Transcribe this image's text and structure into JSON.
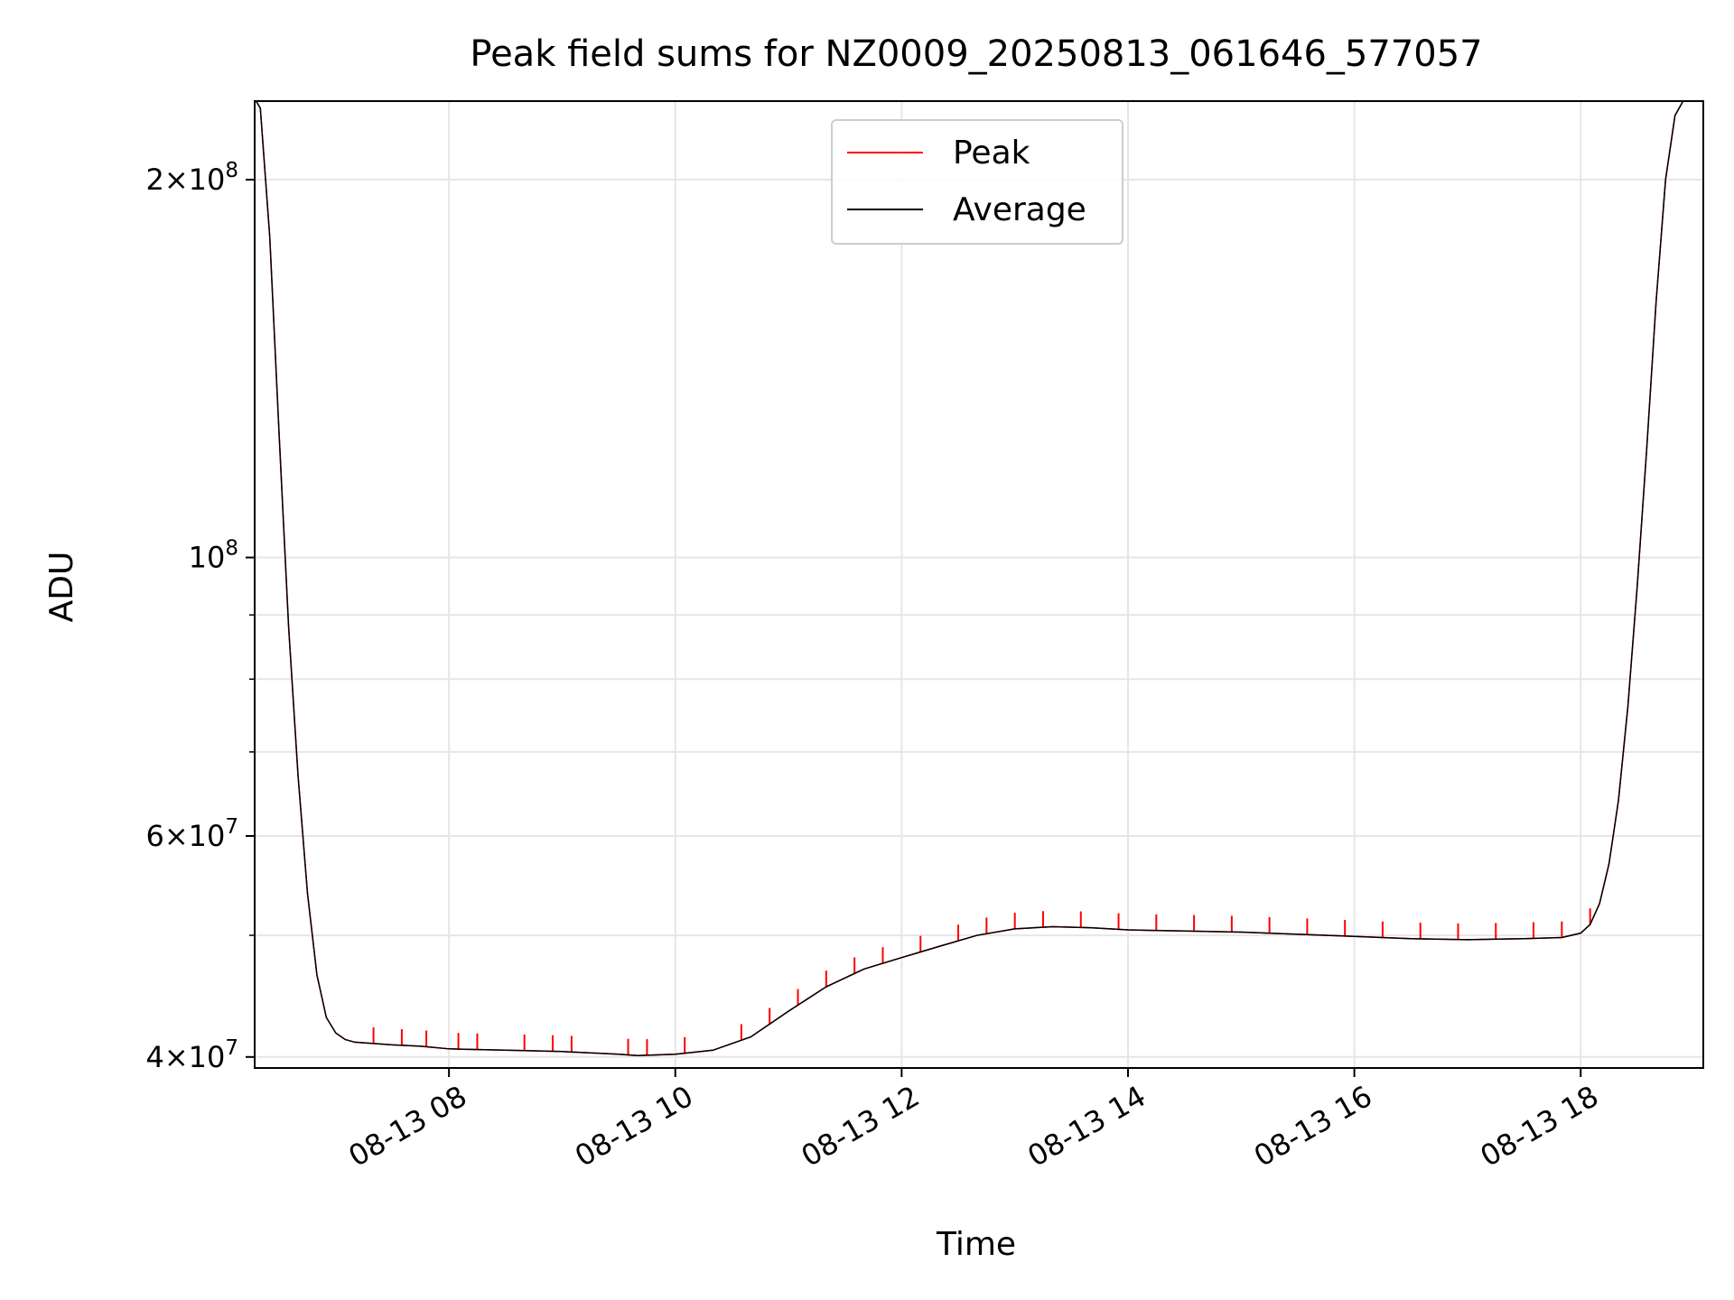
{
  "chart_data": {
    "type": "line",
    "title": "Peak field sums for NZ0009_20250813_061646_577057",
    "xlabel": "Time",
    "ylabel": "ADU",
    "y_scale": "log",
    "ylim": [
      39200000,
      231000000
    ],
    "xlim": [
      "2025-08-13 06:17",
      "2025-08-13 19:05"
    ],
    "grid": true,
    "legend_position": "upper-center",
    "x_ticks": [
      {
        "time": "2025-08-13 08:00",
        "label": "08-13 08"
      },
      {
        "time": "2025-08-13 10:00",
        "label": "08-13 10"
      },
      {
        "time": "2025-08-13 12:00",
        "label": "08-13 12"
      },
      {
        "time": "2025-08-13 14:00",
        "label": "08-13 14"
      },
      {
        "time": "2025-08-13 16:00",
        "label": "08-13 16"
      },
      {
        "time": "2025-08-13 18:00",
        "label": "08-13 18"
      }
    ],
    "y_major_ticks": [
      {
        "value": 40000000,
        "mant": "4",
        "base": "10",
        "exp": "7"
      },
      {
        "value": 60000000,
        "mant": "6",
        "base": "10",
        "exp": "7"
      },
      {
        "value": 100000000,
        "mant": "",
        "base": "10",
        "exp": "8"
      },
      {
        "value": 200000000,
        "mant": "2",
        "base": "10",
        "exp": "8"
      }
    ],
    "y_minor_ticks": [
      50000000,
      70000000,
      80000000,
      90000000
    ],
    "series": [
      {
        "name": "Peak",
        "color": "#ff0000",
        "spike_times": [
          "2025-08-13 07:20",
          "2025-08-13 07:35",
          "2025-08-13 07:48",
          "2025-08-13 08:05",
          "2025-08-13 08:15",
          "2025-08-13 08:40",
          "2025-08-13 08:55",
          "2025-08-13 09:05",
          "2025-08-13 09:35",
          "2025-08-13 09:45",
          "2025-08-13 10:05",
          "2025-08-13 10:35",
          "2025-08-13 10:50",
          "2025-08-13 11:05",
          "2025-08-13 11:20",
          "2025-08-13 11:35",
          "2025-08-13 11:50",
          "2025-08-13 12:10",
          "2025-08-13 12:30",
          "2025-08-13 12:45",
          "2025-08-13 13:00",
          "2025-08-13 13:15",
          "2025-08-13 13:35",
          "2025-08-13 13:55",
          "2025-08-13 14:15",
          "2025-08-13 14:35",
          "2025-08-13 14:55",
          "2025-08-13 15:15",
          "2025-08-13 15:35",
          "2025-08-13 15:55",
          "2025-08-13 16:15",
          "2025-08-13 16:35",
          "2025-08-13 16:55",
          "2025-08-13 17:15",
          "2025-08-13 17:35",
          "2025-08-13 17:50",
          "2025-08-13 18:05"
        ],
        "spike_ratio": 1.03
      },
      {
        "name": "Average",
        "color": "#000000",
        "x": [
          "2025-08-13 06:17",
          "2025-08-13 06:20",
          "2025-08-13 06:25",
          "2025-08-13 06:30",
          "2025-08-13 06:35",
          "2025-08-13 06:40",
          "2025-08-13 06:45",
          "2025-08-13 06:50",
          "2025-08-13 06:55",
          "2025-08-13 07:00",
          "2025-08-13 07:05",
          "2025-08-13 07:10",
          "2025-08-13 07:20",
          "2025-08-13 07:30",
          "2025-08-13 07:45",
          "2025-08-13 08:00",
          "2025-08-13 08:30",
          "2025-08-13 09:00",
          "2025-08-13 09:30",
          "2025-08-13 09:40",
          "2025-08-13 10:00",
          "2025-08-13 10:20",
          "2025-08-13 10:40",
          "2025-08-13 11:00",
          "2025-08-13 11:20",
          "2025-08-13 11:40",
          "2025-08-13 12:00",
          "2025-08-13 12:20",
          "2025-08-13 12:40",
          "2025-08-13 13:00",
          "2025-08-13 13:20",
          "2025-08-13 13:40",
          "2025-08-13 14:00",
          "2025-08-13 14:30",
          "2025-08-13 15:00",
          "2025-08-13 15:30",
          "2025-08-13 16:00",
          "2025-08-13 16:30",
          "2025-08-13 17:00",
          "2025-08-13 17:30",
          "2025-08-13 17:50",
          "2025-08-13 18:00",
          "2025-08-13 18:05",
          "2025-08-13 18:10",
          "2025-08-13 18:15",
          "2025-08-13 18:20",
          "2025-08-13 18:25",
          "2025-08-13 18:30",
          "2025-08-13 18:35",
          "2025-08-13 18:40",
          "2025-08-13 18:45",
          "2025-08-13 18:50",
          "2025-08-13 18:55",
          "2025-08-13 19:00",
          "2025-08-13 19:05"
        ],
        "y": [
          232000000,
          228000000,
          180000000,
          125000000,
          88000000,
          67000000,
          54000000,
          46500000,
          43000000,
          41800000,
          41300000,
          41100000,
          41000000,
          40900000,
          40800000,
          40600000,
          40500000,
          40400000,
          40200000,
          40100000,
          40200000,
          40500000,
          41500000,
          43500000,
          45500000,
          47000000,
          48000000,
          49000000,
          50000000,
          50600000,
          50800000,
          50700000,
          50500000,
          50400000,
          50300000,
          50100000,
          49900000,
          49700000,
          49600000,
          49700000,
          49800000,
          50200000,
          51000000,
          53000000,
          57000000,
          64000000,
          76000000,
          95000000,
          122000000,
          160000000,
          200000000,
          225000000,
          232000000,
          232000000,
          232000000
        ]
      }
    ]
  }
}
